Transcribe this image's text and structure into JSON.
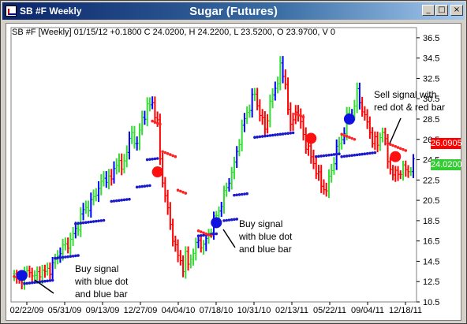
{
  "window": {
    "title": "SB #F Weekly",
    "buttons": {
      "minimize": "_",
      "maximize": "□",
      "close": "×"
    }
  },
  "chart_data": {
    "type": "bar",
    "title": "Sugar (Futures)",
    "info_line": "SB #F [Weekly] 01/15/12 +0.1800 C 24.0200, H 24.2200, L 23.5200, O 23.9700, V 0",
    "ylim": [
      10.5,
      37.5
    ],
    "y_ticks": [
      "36.5",
      "34.5",
      "32.5",
      "30.5",
      "28.5",
      "26.5",
      "24.5",
      "22.5",
      "20.5",
      "18.5",
      "16.5",
      "14.5",
      "12.5",
      "10.5"
    ],
    "x_ticks": [
      "02/22/09",
      "05/31/09",
      "09/13/09",
      "12/27/09",
      "04/04/10",
      "07/18/10",
      "10/31/10",
      "02/13/11",
      "05/22/11",
      "09/04/11",
      "12/18/11"
    ],
    "price_tags": [
      {
        "value": 26.0905,
        "label": "26.0905",
        "color": "#ff0000"
      },
      {
        "value": 24.02,
        "label": "24.0200",
        "color": "#33cc33"
      }
    ],
    "colors": {
      "up": "#33dd33",
      "down": "#ff0000",
      "trend": "#0000ff",
      "up_dots": "#1a1acc",
      "down_dots": "#ff2020"
    },
    "annotations": [
      {
        "lines": [
          "Buy signal",
          "with blue dot",
          "and blue bar"
        ],
        "marker": "blue"
      },
      {
        "lines": [
          "Buy signal",
          "with blue dot",
          "and blue bar"
        ],
        "marker": "blue"
      },
      {
        "lines": [
          "Sell signal with",
          "red dot & red bar"
        ],
        "marker": "red"
      }
    ],
    "markers": [
      {
        "date": "02/22/09",
        "price": 13.1,
        "color": "blue"
      },
      {
        "date": "12/27/09",
        "price": 23.3,
        "color": "red"
      },
      {
        "date": "07/18/10",
        "price": 18.3,
        "color": "blue"
      },
      {
        "date": "02/13/11",
        "price": 26.6,
        "color": "red"
      },
      {
        "date": "05/22/11",
        "price": 28.5,
        "color": "blue"
      },
      {
        "date": "09/04/11",
        "price": 24.8,
        "color": "red"
      }
    ],
    "price_path": [
      [
        0,
        13.0
      ],
      [
        2,
        12.6
      ],
      [
        4,
        13.2
      ],
      [
        6,
        13.6
      ],
      [
        8,
        12.9
      ],
      [
        10,
        13.5
      ],
      [
        12,
        13.4
      ],
      [
        15,
        14.0
      ],
      [
        18,
        15.6
      ],
      [
        21,
        16.2
      ],
      [
        24,
        17.5
      ],
      [
        27,
        19.5
      ],
      [
        30,
        20.2
      ],
      [
        33,
        21.8
      ],
      [
        36,
        22.8
      ],
      [
        38,
        22.5
      ],
      [
        40,
        24.5
      ],
      [
        42,
        23.5
      ],
      [
        44,
        25.5
      ],
      [
        46,
        27.0
      ],
      [
        48,
        26.0
      ],
      [
        50,
        28.5
      ],
      [
        52,
        29.6
      ],
      [
        54,
        30.1
      ],
      [
        56,
        28.0
      ],
      [
        57,
        24.5
      ],
      [
        58,
        22.5
      ],
      [
        59,
        21.0
      ],
      [
        60,
        19.5
      ],
      [
        61,
        18.0
      ],
      [
        62,
        17.0
      ],
      [
        63,
        15.8
      ],
      [
        64,
        15.0
      ],
      [
        65,
        14.5
      ],
      [
        66,
        14.0
      ],
      [
        67,
        15.0
      ],
      [
        68,
        14.2
      ],
      [
        70,
        15.5
      ],
      [
        72,
        16.5
      ],
      [
        74,
        16.0
      ],
      [
        76,
        17.2
      ],
      [
        78,
        18.5
      ],
      [
        80,
        19.5
      ],
      [
        82,
        21.0
      ],
      [
        84,
        22.5
      ],
      [
        86,
        24.0
      ],
      [
        88,
        26.5
      ],
      [
        90,
        28.5
      ],
      [
        92,
        29.8
      ],
      [
        94,
        31.0
      ],
      [
        96,
        29.0
      ],
      [
        98,
        27.5
      ],
      [
        100,
        30.0
      ],
      [
        102,
        31.5
      ],
      [
        104,
        33.5
      ],
      [
        106,
        32.0
      ],
      [
        108,
        27.5
      ],
      [
        110,
        29.5
      ],
      [
        112,
        28.0
      ],
      [
        114,
        26.0
      ],
      [
        116,
        24.8
      ],
      [
        118,
        23.5
      ],
      [
        120,
        22.0
      ],
      [
        122,
        21.5
      ],
      [
        124,
        23.5
      ],
      [
        126,
        25.5
      ],
      [
        128,
        26.5
      ],
      [
        130,
        28.5
      ],
      [
        132,
        29.0
      ],
      [
        134,
        31.0
      ],
      [
        136,
        29.5
      ],
      [
        138,
        28.0
      ],
      [
        140,
        26.5
      ],
      [
        142,
        26.0
      ],
      [
        144,
        27.5
      ],
      [
        146,
        24.5
      ],
      [
        148,
        23.0
      ],
      [
        150,
        23.2
      ],
      [
        152,
        23.6
      ],
      [
        154,
        23.4
      ],
      [
        156,
        24.0
      ]
    ],
    "support_blue": [
      [
        4,
        12.3,
        12
      ],
      [
        16,
        14.8,
        10
      ],
      [
        24,
        18.2,
        12
      ],
      [
        38,
        20.4,
        8
      ],
      [
        48,
        21.8,
        6
      ],
      [
        52,
        24.5,
        5
      ],
      [
        72,
        17.0,
        8
      ],
      [
        82,
        18.5,
        6
      ],
      [
        86,
        21.0,
        6
      ],
      [
        94,
        26.7,
        16
      ],
      [
        118,
        24.8,
        10
      ],
      [
        128,
        24.8,
        14
      ]
    ],
    "resist_red": [
      [
        0,
        13.0,
        3
      ],
      [
        54,
        28.3,
        4
      ],
      [
        58,
        25.3,
        6
      ],
      [
        64,
        21.5,
        4
      ],
      [
        72,
        17.5,
        6
      ],
      [
        110,
        29.0,
        4
      ],
      [
        128,
        27.0,
        6
      ],
      [
        146,
        26.1,
        8
      ]
    ]
  }
}
